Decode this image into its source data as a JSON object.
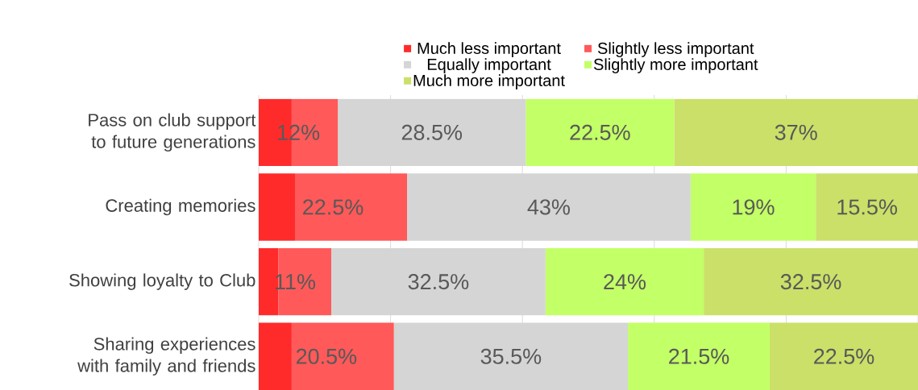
{
  "chart_data": {
    "type": "bar",
    "orientation": "horizontal",
    "stacked": true,
    "categories": [
      "Pass on club support to future generations",
      "Creating memories",
      "Showing loyalty to Club",
      "Sharing experiences with family and friends"
    ],
    "series": [
      {
        "name": "Much less important",
        "color": "#ff2b2b",
        "values": [
          5,
          5.5,
          3,
          5
        ],
        "value_labels": [
          null,
          null,
          null,
          null
        ]
      },
      {
        "name": "Slightly less important",
        "color": "#ff5959",
        "values": [
          7,
          17,
          8,
          15.5
        ],
        "value_labels": [
          null,
          null,
          null,
          null
        ]
      },
      {
        "name": "Equally important",
        "color": "#d5d5d5",
        "values": [
          28.5,
          43,
          32.5,
          35.5
        ],
        "value_labels": [
          "28.5%",
          "43%",
          "32.5%",
          "35.5%"
        ]
      },
      {
        "name": "Slightly more important",
        "color": "#c3ff66",
        "values": [
          22.5,
          19,
          24,
          21.5
        ],
        "value_labels": [
          "22.5%",
          "19%",
          "24%",
          "21.5%"
        ]
      },
      {
        "name": "Much more important",
        "color": "#cae068",
        "values": [
          37,
          15.5,
          32.5,
          22.5
        ],
        "value_labels": [
          "37%",
          "15.5%",
          "32.5%",
          "22.5%"
        ]
      }
    ],
    "annotations": [
      {
        "text": "12%",
        "x": 6,
        "y": "Pass on club support to future generations"
      },
      {
        "text": "22.5%",
        "x": 11.25,
        "y": "Creating memories"
      },
      {
        "text": "11%",
        "x": 5.5,
        "y": "Showing loyalty to Club"
      },
      {
        "text": "20.5%",
        "x": 10.25,
        "y": "Sharing experiences with family and friends"
      }
    ],
    "xlim": [
      0,
      100
    ],
    "xticks": [
      {
        "value": 0,
        "label": null
      },
      {
        "value": 20,
        "label": null
      },
      {
        "value": 40,
        "label": null
      },
      {
        "value": 60,
        "label": null
      },
      {
        "value": 80,
        "label": null
      },
      {
        "value": 100,
        "label": null
      }
    ],
    "grid": "x",
    "legend": "top",
    "tick_labels": "y"
  }
}
